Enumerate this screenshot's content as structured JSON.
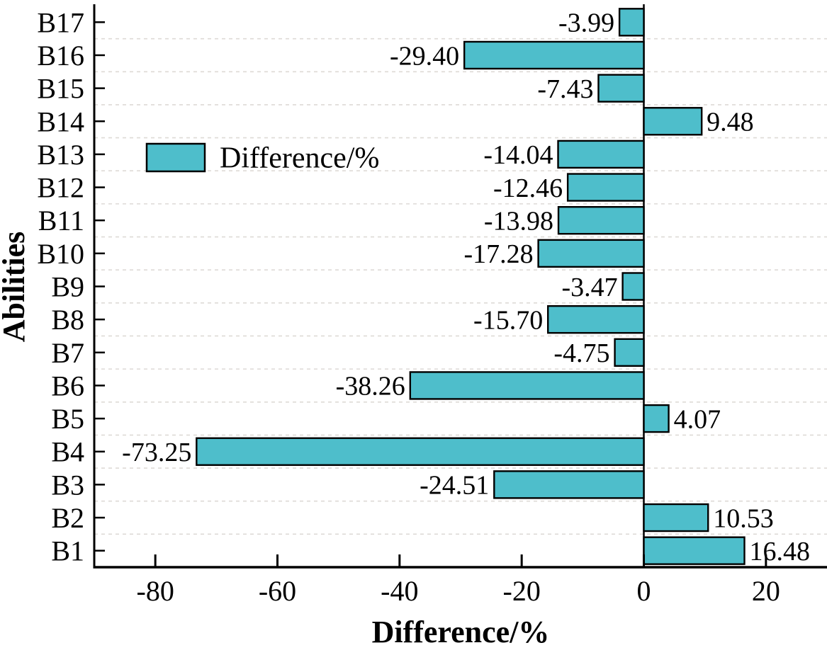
{
  "chart_data": {
    "type": "bar",
    "orientation": "horizontal",
    "xlabel": "Difference/%",
    "ylabel": "Abilities",
    "categories": [
      "B1",
      "B2",
      "B3",
      "B4",
      "B5",
      "B6",
      "B7",
      "B8",
      "B9",
      "B10",
      "B11",
      "B12",
      "B13",
      "B14",
      "B15",
      "B16",
      "B17"
    ],
    "values": [
      16.48,
      10.53,
      -24.51,
      -73.25,
      4.07,
      -38.26,
      -4.75,
      -15.7,
      -3.47,
      -17.28,
      -13.98,
      -12.46,
      -14.04,
      9.48,
      -7.43,
      -29.4,
      -3.99
    ],
    "value_labels": [
      "16.48",
      "10.53",
      "-24.51",
      "-73.25",
      "4.07",
      "-38.26",
      "-4.75",
      "-15.70",
      "-3.47",
      "-17.28",
      "-13.98",
      "-12.46",
      "-14.04",
      "9.48",
      "-7.43",
      "-29.40",
      "-3.99"
    ],
    "xlim": [
      -90,
      30
    ],
    "xticks": [
      -80,
      -60,
      -40,
      -20,
      0,
      20
    ],
    "xtick_labels": [
      "-80",
      "-60",
      "-40",
      "-20",
      "0",
      "20"
    ],
    "legend": {
      "label": "Difference/%",
      "position": "inside-upper-left"
    },
    "grid": "horizontal-dashed",
    "colors": {
      "bar_fill": "#4EBECB",
      "bar_border": "#000000",
      "grid_line": "#dedad6",
      "axis": "#000000"
    }
  }
}
